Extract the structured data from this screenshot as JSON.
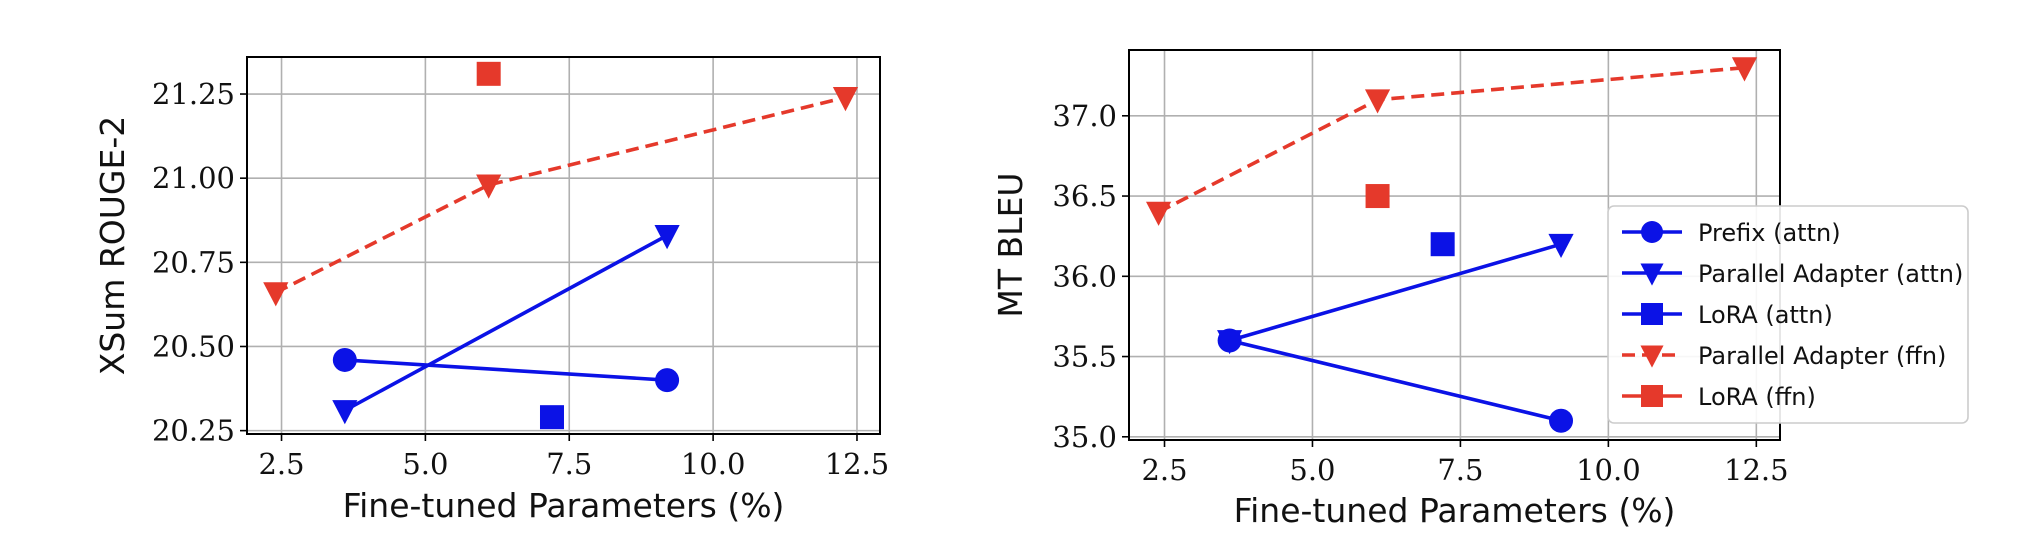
{
  "colors": {
    "blue": "#0b12e6",
    "red": "#e5392b"
  },
  "chart_data": [
    {
      "type": "line",
      "xlabel": "Fine-tuned Parameters (%)",
      "ylabel": "XSum ROUGE-2",
      "xlim": [
        1.9,
        12.9
      ],
      "ylim": [
        20.24,
        21.36
      ],
      "xticks": [
        2.5,
        5.0,
        7.5,
        10.0,
        12.5
      ],
      "yticks": [
        20.25,
        20.5,
        20.75,
        21.0,
        21.25
      ],
      "xtick_labels": [
        "2.5",
        "5.0",
        "7.5",
        "10.0",
        "12.5"
      ],
      "ytick_labels": [
        "20.25",
        "20.50",
        "20.75",
        "21.00",
        "21.25"
      ],
      "grid": true,
      "series": [
        {
          "name": "Prefix (attn)",
          "color": "blue",
          "marker": "circle",
          "dashed": false,
          "x": [
            3.6,
            9.2
          ],
          "y": [
            20.46,
            20.4
          ]
        },
        {
          "name": "Parallel Adapter (attn)",
          "color": "blue",
          "marker": "triangle-down",
          "dashed": false,
          "x": [
            3.6,
            9.2
          ],
          "y": [
            20.31,
            20.83
          ]
        },
        {
          "name": "LoRA (attn)",
          "color": "blue",
          "marker": "square",
          "dashed": false,
          "x": [
            7.2
          ],
          "y": [
            20.29
          ]
        },
        {
          "name": "Parallel Adapter (ffn)",
          "color": "red",
          "marker": "triangle-down",
          "dashed": true,
          "x": [
            2.4,
            6.1,
            12.3
          ],
          "y": [
            20.66,
            20.98,
            21.24
          ]
        },
        {
          "name": "LoRA (ffn)",
          "color": "red",
          "marker": "square",
          "dashed": false,
          "x": [
            6.1
          ],
          "y": [
            21.31
          ]
        }
      ]
    },
    {
      "type": "line",
      "xlabel": "Fine-tuned Parameters (%)",
      "ylabel": "MT BLEU",
      "xlim": [
        1.9,
        12.9
      ],
      "ylim": [
        34.98,
        37.41
      ],
      "xticks": [
        2.5,
        5.0,
        7.5,
        10.0,
        12.5
      ],
      "yticks": [
        35.0,
        35.5,
        36.0,
        36.5,
        37.0
      ],
      "xtick_labels": [
        "2.5",
        "5.0",
        "7.5",
        "10.0",
        "12.5"
      ],
      "ytick_labels": [
        "35.0",
        "35.5",
        "36.0",
        "36.5",
        "37.0"
      ],
      "grid": true,
      "legend": "right",
      "series": [
        {
          "name": "Prefix (attn)",
          "color": "blue",
          "marker": "circle",
          "dashed": false,
          "x": [
            3.6,
            9.2
          ],
          "y": [
            35.6,
            35.1
          ]
        },
        {
          "name": "Parallel Adapter (attn)",
          "color": "blue",
          "marker": "triangle-down",
          "dashed": false,
          "x": [
            3.6,
            9.2
          ],
          "y": [
            35.6,
            36.2
          ]
        },
        {
          "name": "LoRA (attn)",
          "color": "blue",
          "marker": "square",
          "dashed": false,
          "x": [
            7.2
          ],
          "y": [
            36.2
          ]
        },
        {
          "name": "Parallel Adapter (ffn)",
          "color": "red",
          "marker": "triangle-down",
          "dashed": true,
          "x": [
            2.4,
            6.1,
            12.3
          ],
          "y": [
            36.4,
            37.1,
            37.3
          ]
        },
        {
          "name": "LoRA (ffn)",
          "color": "red",
          "marker": "square",
          "dashed": false,
          "x": [
            6.1
          ],
          "y": [
            36.5
          ]
        }
      ]
    }
  ]
}
